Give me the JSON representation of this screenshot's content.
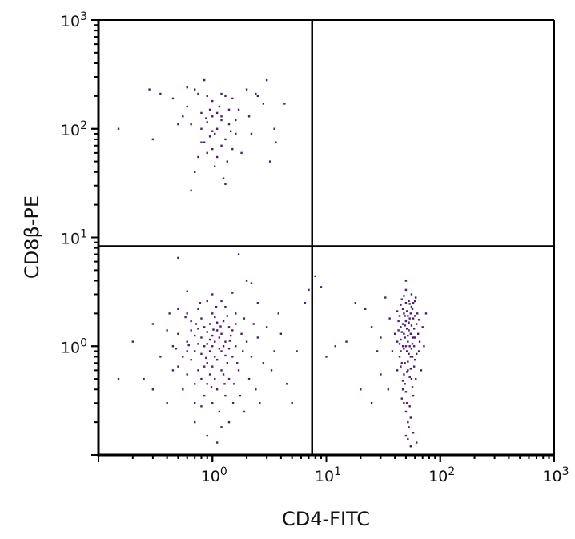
{
  "chart_data": {
    "type": "scatter",
    "title": "",
    "xlabel": "CD4-FITC",
    "ylabel": "CD8β-PE",
    "x_scale": "log",
    "y_scale": "log",
    "xlim": [
      0.1,
      1000
    ],
    "ylim": [
      0.1,
      1000
    ],
    "grid": false,
    "x_ticks": [
      {
        "value": 1,
        "base": "10",
        "exp": "0"
      },
      {
        "value": 10,
        "base": "10",
        "exp": "1"
      },
      {
        "value": 100,
        "base": "10",
        "exp": "2"
      },
      {
        "value": 1000,
        "base": "10",
        "exp": "3"
      }
    ],
    "y_ticks": [
      {
        "value": 1,
        "base": "10",
        "exp": "0"
      },
      {
        "value": 10,
        "base": "10",
        "exp": "1"
      },
      {
        "value": 100,
        "base": "10",
        "exp": "2"
      },
      {
        "value": 1000,
        "base": "10",
        "exp": "3"
      }
    ],
    "quadrant_gates": {
      "x": 7.5,
      "y": 8.3
    },
    "point_color": "#4b1a7c",
    "points": [
      [
        0.15,
        100
      ],
      [
        0.28,
        230
      ],
      [
        0.3,
        80
      ],
      [
        0.35,
        210
      ],
      [
        0.45,
        190
      ],
      [
        0.55,
        130
      ],
      [
        0.6,
        240
      ],
      [
        0.65,
        27
      ],
      [
        0.7,
        230
      ],
      [
        0.75,
        210
      ],
      [
        0.8,
        100
      ],
      [
        0.85,
        280
      ],
      [
        0.9,
        60
      ],
      [
        0.95,
        150
      ],
      [
        1.0,
        130
      ],
      [
        1.05,
        90
      ],
      [
        1.1,
        140
      ],
      [
        1.2,
        70
      ],
      [
        1.3,
        200
      ],
      [
        1.4,
        110
      ],
      [
        1.5,
        190
      ],
      [
        1.6,
        120
      ],
      [
        1.8,
        60
      ],
      [
        2.0,
        230
      ],
      [
        2.2,
        90
      ],
      [
        2.5,
        200
      ],
      [
        3,
        280
      ],
      [
        3.5,
        100
      ],
      [
        4.3,
        170
      ],
      [
        3.2,
        50
      ],
      [
        3.6,
        75
      ],
      [
        0.7,
        40
      ],
      [
        0.75,
        55
      ],
      [
        0.8,
        140
      ],
      [
        0.85,
        75
      ],
      [
        0.9,
        115
      ],
      [
        0.95,
        85
      ],
      [
        1.0,
        65
      ],
      [
        1.0,
        180
      ],
      [
        1.05,
        45
      ],
      [
        1.1,
        100
      ],
      [
        1.15,
        160
      ],
      [
        1.2,
        130
      ],
      [
        1.25,
        35
      ],
      [
        1.3,
        80
      ],
      [
        1.35,
        50
      ],
      [
        1.4,
        150
      ],
      [
        1.5,
        65
      ],
      [
        1.6,
        90
      ],
      [
        1.7,
        150
      ],
      [
        2.1,
        130
      ],
      [
        2.4,
        210
      ],
      [
        0.6,
        160
      ],
      [
        0.65,
        110
      ],
      [
        0.9,
        200
      ],
      [
        1.2,
        210
      ],
      [
        0.8,
        75
      ],
      [
        1.1,
        55
      ],
      [
        1.3,
        31
      ],
      [
        2.8,
        170
      ],
      [
        0.5,
        110
      ],
      [
        1.0,
        95
      ],
      [
        1.2,
        120
      ],
      [
        0.88,
        125
      ],
      [
        1.45,
        95
      ],
      [
        1,
        1
      ],
      [
        0.8,
        1.2
      ],
      [
        1.2,
        0.9
      ],
      [
        0.9,
        0.7
      ],
      [
        1.1,
        1.4
      ],
      [
        0.7,
        0.9
      ],
      [
        1.3,
        1.1
      ],
      [
        0.95,
        1.6
      ],
      [
        1.05,
        0.5
      ],
      [
        0.6,
        1.1
      ],
      [
        1.5,
        0.8
      ],
      [
        0.85,
        1.0
      ],
      [
        1.15,
        1.2
      ],
      [
        0.75,
        0.6
      ],
      [
        1.4,
        1.5
      ],
      [
        0.65,
        1.4
      ],
      [
        1.6,
        1.0
      ],
      [
        0.9,
        0.45
      ],
      [
        1.0,
        2.0
      ],
      [
        1.2,
        0.6
      ],
      [
        0.55,
        0.8
      ],
      [
        1.8,
        1.3
      ],
      [
        0.8,
        1.8
      ],
      [
        1.1,
        0.75
      ],
      [
        0.7,
        1.25
      ],
      [
        1.35,
        0.7
      ],
      [
        0.95,
        0.9
      ],
      [
        1.25,
        1.7
      ],
      [
        0.6,
        0.55
      ],
      [
        1.7,
        0.6
      ],
      [
        0.5,
        1.3
      ],
      [
        2.0,
        1.1
      ],
      [
        0.85,
        0.35
      ],
      [
        1.05,
        1.1
      ],
      [
        0.75,
        2.2
      ],
      [
        1.45,
        1.25
      ],
      [
        0.9,
        1.35
      ],
      [
        1.1,
        0.4
      ],
      [
        0.65,
        0.75
      ],
      [
        1.3,
        2.3
      ],
      [
        2.2,
        0.8
      ],
      [
        0.45,
        1.0
      ],
      [
        1.0,
        0.3
      ],
      [
        0.8,
        0.85
      ],
      [
        1.2,
        1.3
      ],
      [
        1.55,
        0.45
      ],
      [
        0.7,
        0.45
      ],
      [
        1.9,
        1.8
      ],
      [
        0.95,
        1.15
      ],
      [
        1.15,
        0.95
      ],
      [
        0.6,
        2.0
      ],
      [
        1.4,
        0.95
      ],
      [
        2.5,
        1.2
      ],
      [
        0.5,
        0.65
      ],
      [
        1.0,
        0.65
      ],
      [
        0.85,
        1.5
      ],
      [
        1.25,
        0.55
      ],
      [
        1.6,
        2.0
      ],
      [
        0.75,
        1.05
      ],
      [
        1.05,
        1.85
      ],
      [
        0.4,
        1.4
      ],
      [
        2.8,
        0.7
      ],
      [
        1.3,
        0.35
      ],
      [
        0.9,
        2.6
      ],
      [
        0.55,
        0.4
      ],
      [
        1.75,
        0.35
      ],
      [
        1.1,
        1.65
      ],
      [
        0.7,
        0.3
      ],
      [
        1.5,
        1.4
      ],
      [
        0.95,
        0.55
      ],
      [
        2.1,
        0.5
      ],
      [
        0.65,
        1.7
      ],
      [
        1.2,
        2.6
      ],
      [
        0.8,
        0.5
      ],
      [
        3.0,
        1.5
      ],
      [
        0.45,
        0.6
      ],
      [
        1.35,
        1.9
      ],
      [
        1.0,
        1.25
      ],
      [
        1.85,
        0.9
      ],
      [
        0.6,
        0.9
      ],
      [
        1.15,
        0.25
      ],
      [
        0.9,
        1.05
      ],
      [
        1.65,
        0.7
      ],
      [
        0.75,
        1.45
      ],
      [
        1.4,
        0.5
      ],
      [
        0.5,
        2.2
      ],
      [
        2.4,
        0.4
      ],
      [
        1.05,
        0.8
      ],
      [
        0.85,
        0.65
      ],
      [
        1.25,
        1.0
      ],
      [
        0.35,
        0.8
      ],
      [
        3.5,
        0.9
      ],
      [
        1.0,
        3.0
      ],
      [
        0.7,
        0.2
      ],
      [
        1.9,
        0.25
      ],
      [
        0.3,
        1.6
      ],
      [
        0.25,
        0.5
      ],
      [
        0.2,
        1.1
      ],
      [
        0.15,
        0.5
      ],
      [
        4.0,
        1.3
      ],
      [
        4.5,
        0.45
      ],
      [
        5.0,
        0.3
      ],
      [
        2.5,
        2.5
      ],
      [
        0.6,
        3.2
      ],
      [
        1.5,
        3.1
      ],
      [
        1.2,
        0.18
      ],
      [
        0.9,
        0.15
      ],
      [
        1.4,
        0.2
      ],
      [
        2.0,
        4.0
      ],
      [
        0.5,
        6.5
      ],
      [
        1.7,
        7.0
      ],
      [
        2.2,
        3.8
      ],
      [
        3.3,
        0.6
      ],
      [
        0.4,
        0.3
      ],
      [
        1.1,
        0.13
      ],
      [
        6.5,
        2.5
      ],
      [
        7.0,
        3.3
      ],
      [
        0.8,
        0.28
      ],
      [
        2.6,
        0.3
      ],
      [
        1.6,
        1.6
      ],
      [
        1.3,
        0.82
      ],
      [
        0.72,
        1.6
      ],
      [
        1.02,
        1.42
      ],
      [
        0.88,
        0.78
      ],
      [
        1.18,
        1.52
      ],
      [
        0.62,
        1.02
      ],
      [
        1.42,
        1.12
      ],
      [
        0.98,
        0.42
      ],
      [
        1.08,
        2.3
      ],
      [
        0.78,
        2.5
      ],
      [
        1.28,
        0.45
      ],
      [
        0.58,
        1.85
      ],
      [
        2.3,
        1.6
      ],
      [
        0.48,
        0.95
      ],
      [
        3.8,
        2.0
      ],
      [
        0.42,
        2.0
      ],
      [
        1.52,
        0.3
      ],
      [
        5.5,
        0.9
      ],
      [
        0.3,
        0.4
      ],
      [
        50,
        1
      ],
      [
        45,
        1.5
      ],
      [
        55,
        0.8
      ],
      [
        60,
        1.2
      ],
      [
        48,
        2
      ],
      [
        52,
        0.6
      ],
      [
        58,
        1.8
      ],
      [
        42,
        1.1
      ],
      [
        65,
        0.9
      ],
      [
        50,
        2.5
      ],
      [
        47,
        0.4
      ],
      [
        53,
        1.4
      ],
      [
        56,
        0.5
      ],
      [
        44,
        0.8
      ],
      [
        62,
        1.6
      ],
      [
        51,
        0.3
      ],
      [
        49,
        1.2
      ],
      [
        57,
        2.2
      ],
      [
        46,
        0.7
      ],
      [
        54,
        1.0
      ],
      [
        59,
        0.65
      ],
      [
        43,
        1.7
      ],
      [
        61,
        2.8
      ],
      [
        50,
        0.25
      ],
      [
        52,
        1.9
      ],
      [
        48,
        0.55
      ],
      [
        55,
        1.3
      ],
      [
        45,
        2.4
      ],
      [
        58,
        0.35
      ],
      [
        40,
        1.3
      ],
      [
        66,
        1.1
      ],
      [
        51,
        0.9
      ],
      [
        53,
        2.6
      ],
      [
        47,
        1.0
      ],
      [
        56,
        1.55
      ],
      [
        49,
        0.45
      ],
      [
        60,
        0.75
      ],
      [
        44,
        1.9
      ],
      [
        54,
        0.28
      ],
      [
        50,
        1.7
      ],
      [
        57,
        1.05
      ],
      [
        46,
        1.35
      ],
      [
        63,
        2.0
      ],
      [
        52,
        0.2
      ],
      [
        48,
        2.9
      ],
      [
        55,
        0.62
      ],
      [
        42,
        0.6
      ],
      [
        59,
        1.45
      ],
      [
        51,
        2.1
      ],
      [
        45,
        1.15
      ],
      [
        53,
        0.85
      ],
      [
        58,
        2.5
      ],
      [
        47,
        1.6
      ],
      [
        61,
        0.5
      ],
      [
        50,
        0.15
      ],
      [
        54,
        1.8
      ],
      [
        49,
        0.7
      ],
      [
        56,
        3.0
      ],
      [
        43,
        1.4
      ],
      [
        64,
        1.3
      ],
      [
        52,
        1.1
      ],
      [
        48,
        0.95
      ],
      [
        55,
        2.0
      ],
      [
        46,
        0.33
      ],
      [
        57,
        0.42
      ],
      [
        50,
        3.3
      ],
      [
        53,
        0.18
      ],
      [
        45,
        0.9
      ],
      [
        60,
        1.9
      ],
      [
        51,
        1.45
      ],
      [
        47,
        2.2
      ],
      [
        58,
        1.2
      ],
      [
        44,
        1.05
      ],
      [
        62,
        0.85
      ],
      [
        49,
        1.55
      ],
      [
        54,
        0.52
      ],
      [
        56,
        2.3
      ],
      [
        52,
        0.72
      ],
      [
        48,
        1.3
      ],
      [
        55,
        0.12
      ],
      [
        50,
        0.38
      ],
      [
        53,
        1.65
      ],
      [
        46,
        2.7
      ],
      [
        59,
        1.0
      ],
      [
        42,
        2.1
      ],
      [
        65,
        1.75
      ],
      [
        51,
        0.58
      ],
      [
        57,
        0.8
      ],
      [
        47,
        0.48
      ],
      [
        54,
        2.45
      ],
      [
        49,
        1.9
      ],
      [
        60,
        2.6
      ],
      [
        45,
        0.65
      ],
      [
        52,
        1.25
      ],
      [
        56,
        0.95
      ],
      [
        50,
        4.0
      ],
      [
        70,
        1.5
      ],
      [
        38,
        0.9
      ],
      [
        75,
        2.0
      ],
      [
        68,
        0.6
      ],
      [
        36,
        1.8
      ],
      [
        72,
        1.0
      ],
      [
        55,
        0.22
      ],
      [
        48,
        0.3
      ],
      [
        58,
        0.16
      ],
      [
        52,
        0.14
      ],
      [
        62,
        0.13
      ],
      [
        12,
        1
      ],
      [
        10,
        0.8
      ],
      [
        15,
        1.1
      ],
      [
        22,
        2.2
      ],
      [
        25,
        1.5
      ],
      [
        30,
        1.2
      ],
      [
        28,
        0.9
      ],
      [
        20,
        0.4
      ],
      [
        25,
        0.3
      ],
      [
        18,
        2.5
      ],
      [
        9,
        3.5
      ],
      [
        30,
        0.55
      ],
      [
        35,
        0.4
      ],
      [
        33,
        2.8
      ],
      [
        8,
        4.4
      ]
    ]
  }
}
